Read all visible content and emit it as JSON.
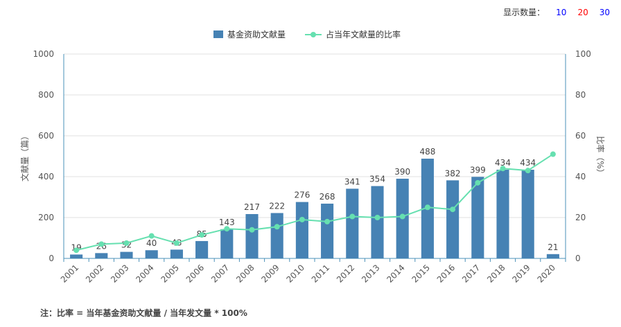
{
  "toolbar": {
    "label": "显示数量：",
    "options": [
      {
        "label": "10",
        "color": "#0000ff"
      },
      {
        "label": "20",
        "color": "#ff0000"
      },
      {
        "label": "30",
        "color": "#0000ff"
      }
    ]
  },
  "footnote": "注：比率 = 当年基金资助文献量 / 当年发文量 * 100%",
  "chart_data": {
    "type": "bar",
    "categories": [
      "2001",
      "2002",
      "2003",
      "2004",
      "2005",
      "2006",
      "2007",
      "2008",
      "2009",
      "2010",
      "2011",
      "2012",
      "2013",
      "2014",
      "2015",
      "2016",
      "2017",
      "2018",
      "2019",
      "2020"
    ],
    "series": [
      {
        "name": "基金资助文献量",
        "type": "bar",
        "axis": "left",
        "color": "#4682b4",
        "values": [
          19,
          26,
          32,
          40,
          43,
          85,
          143,
          217,
          222,
          276,
          268,
          341,
          354,
          390,
          488,
          382,
          399,
          434,
          434,
          21
        ],
        "labels": [
          "19",
          "26",
          "32",
          "40",
          "43",
          "85",
          "143",
          "217",
          "222",
          "276",
          "268",
          "341",
          "354",
          "390",
          "488",
          "382",
          "399",
          "434",
          "434",
          "21"
        ]
      },
      {
        "name": "占当年文献量的比率",
        "type": "line",
        "axis": "right",
        "color": "#66e0b0",
        "values": [
          4,
          7,
          7.5,
          11,
          7.5,
          11.5,
          14.5,
          14,
          15.5,
          19,
          18,
          20.5,
          20,
          20.5,
          25,
          24,
          37,
          44,
          43,
          51
        ]
      }
    ],
    "yAxisLeft": {
      "label": "文献量（篇）",
      "range": [
        0,
        1000
      ],
      "ticks": [
        "0",
        "200",
        "400",
        "600",
        "800",
        "1000"
      ]
    },
    "yAxisRight": {
      "label": "比率（%）",
      "range": [
        0,
        100
      ],
      "ticks": [
        "0",
        "20",
        "40",
        "60",
        "80",
        "100"
      ]
    },
    "grid": true,
    "legend_position": "top-center"
  }
}
